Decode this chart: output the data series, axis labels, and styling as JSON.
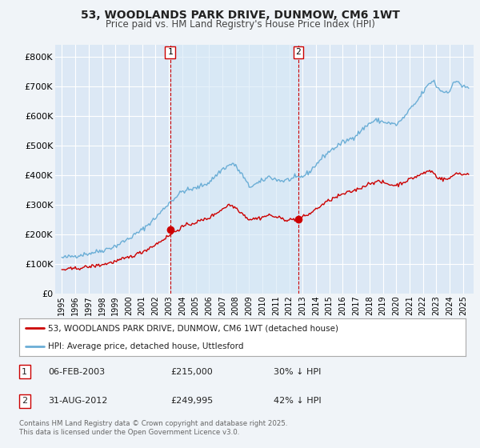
{
  "title": "53, WOODLANDS PARK DRIVE, DUNMOW, CM6 1WT",
  "subtitle": "Price paid vs. HM Land Registry's House Price Index (HPI)",
  "bg_color": "#f0f4f8",
  "plot_bg_color": "#dce8f5",
  "shade_color": "#ccdff0",
  "grid_color": "#ffffff",
  "ylim": [
    0,
    840000
  ],
  "yticks": [
    0,
    100000,
    200000,
    300000,
    400000,
    500000,
    600000,
    700000,
    800000
  ],
  "ytick_labels": [
    "£0",
    "£100K",
    "£200K",
    "£300K",
    "£400K",
    "£500K",
    "£600K",
    "£700K",
    "£800K"
  ],
  "hpi_color": "#6baed6",
  "price_color": "#cc0000",
  "sale1_date": 2003.09,
  "sale1_price": 215000,
  "sale2_date": 2012.67,
  "sale2_price": 249995,
  "legend_line1": "53, WOODLANDS PARK DRIVE, DUNMOW, CM6 1WT (detached house)",
  "legend_line2": "HPI: Average price, detached house, Uttlesford",
  "table_row1": [
    "1",
    "06-FEB-2003",
    "£215,000",
    "30% ↓ HPI"
  ],
  "table_row2": [
    "2",
    "31-AUG-2012",
    "£249,995",
    "42% ↓ HPI"
  ],
  "footnote": "Contains HM Land Registry data © Crown copyright and database right 2025.\nThis data is licensed under the Open Government Licence v3.0.",
  "xmin": 1994.5,
  "xmax": 2025.8
}
